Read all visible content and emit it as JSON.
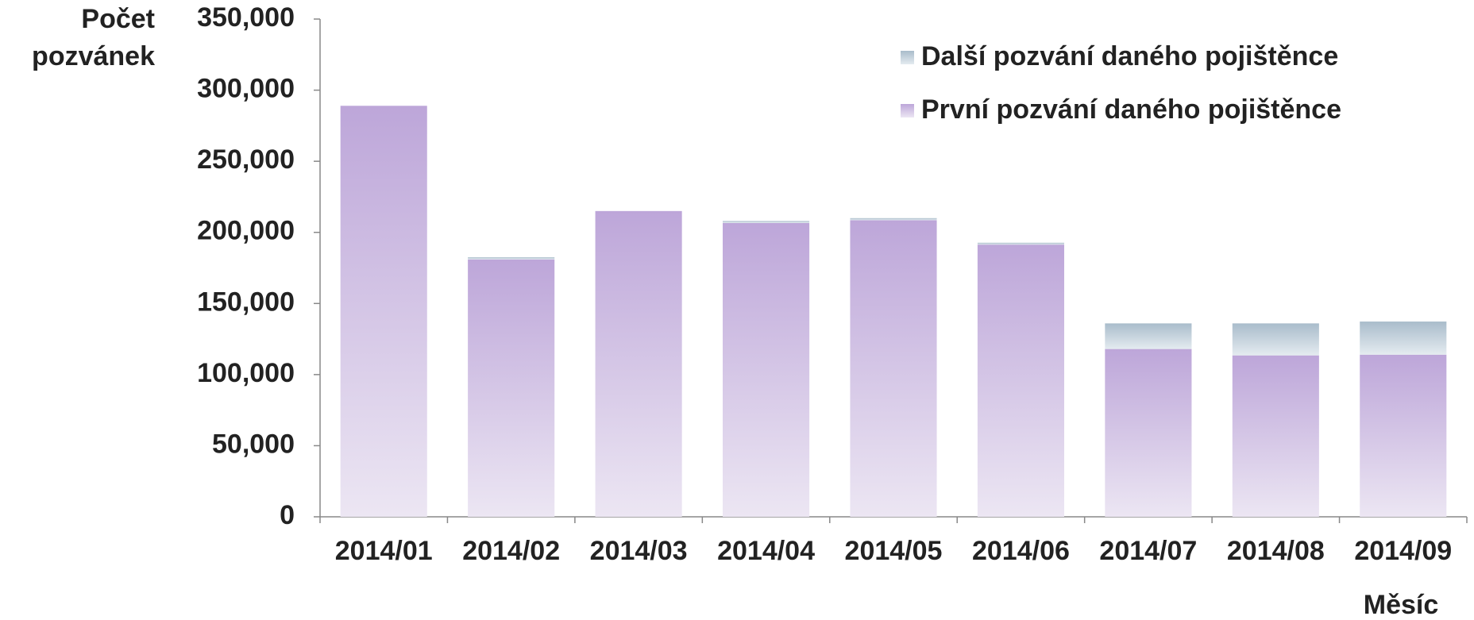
{
  "chart_data": {
    "type": "stacked_bar",
    "y_label": "Počet\npozvánek",
    "x_label": "Měsíc",
    "categories": [
      "2014/01",
      "2014/02",
      "2014/03",
      "2014/04",
      "2014/05",
      "2014/06",
      "2014/07",
      "2014/08",
      "2014/09"
    ],
    "series": [
      {
        "name": "První pozvání daného pojištěnce",
        "color": "#bda6d9",
        "values": [
          289000,
          181000,
          215000,
          206600,
          208600,
          191400,
          118000,
          113500,
          114000
        ]
      },
      {
        "name": "Další pozvání daného pojištěnce",
        "color": "#a9bccb",
        "values": [
          0,
          1500,
          0,
          1400,
          1400,
          1300,
          18000,
          22500,
          23300
        ]
      }
    ],
    "ylim": [
      0,
      350000
    ],
    "yticks": [
      0,
      {
        "value": 50000,
        "label": "50,000"
      },
      {
        "value": 100000,
        "label": "100,000"
      },
      {
        "value": 150000,
        "label": "150,000"
      },
      {
        "value": 200000,
        "label": "200,000"
      },
      {
        "value": 250000,
        "label": "250,000"
      },
      {
        "value": 300000,
        "label": "300,000"
      },
      {
        "value": 350000,
        "label": "350,000"
      }
    ],
    "legend": "top-right"
  }
}
